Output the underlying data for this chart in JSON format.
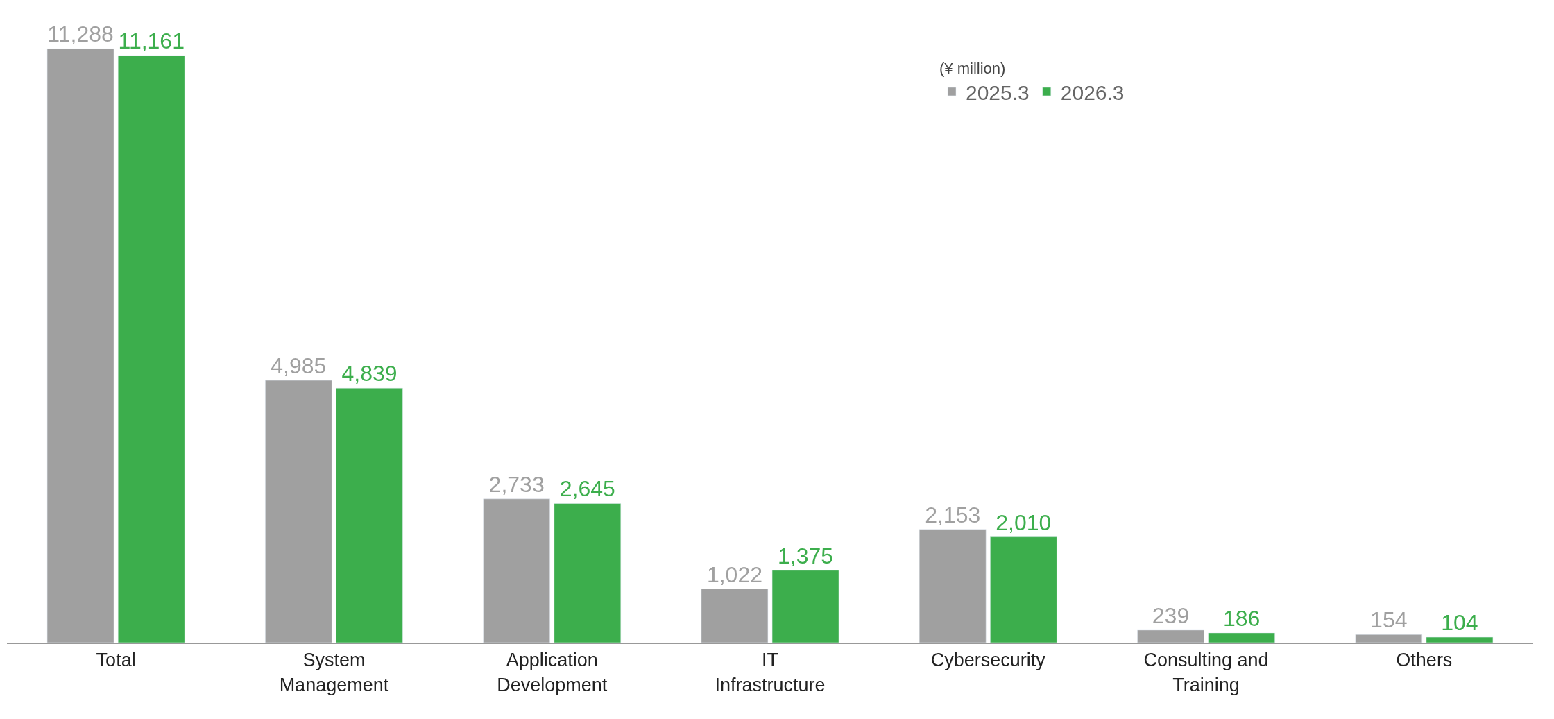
{
  "chart_data": {
    "type": "bar",
    "legend_title": "(¥ million)",
    "legend": "top right",
    "categories": [
      "Total",
      "System Management",
      "Application Development",
      "IT Infrastructure",
      "Cybersecurity",
      "Consulting and Training",
      "Others"
    ],
    "series": [
      {
        "name": "2025.3",
        "color": "#a0a0a0",
        "values": [
          11288,
          4985,
          2733,
          1022,
          2153,
          239,
          154
        ],
        "value_labels": [
          "11,288",
          "4,985",
          "2,733",
          "1,022",
          "2,153",
          "239",
          "154"
        ]
      },
      {
        "name": "2026.3",
        "color": "#3cae4c",
        "values": [
          11161,
          4839,
          2645,
          1375,
          2010,
          186,
          104
        ],
        "value_labels": [
          "11,161",
          "4,839",
          "2,645",
          "1,375",
          "2,010",
          "186",
          "104"
        ]
      }
    ]
  }
}
